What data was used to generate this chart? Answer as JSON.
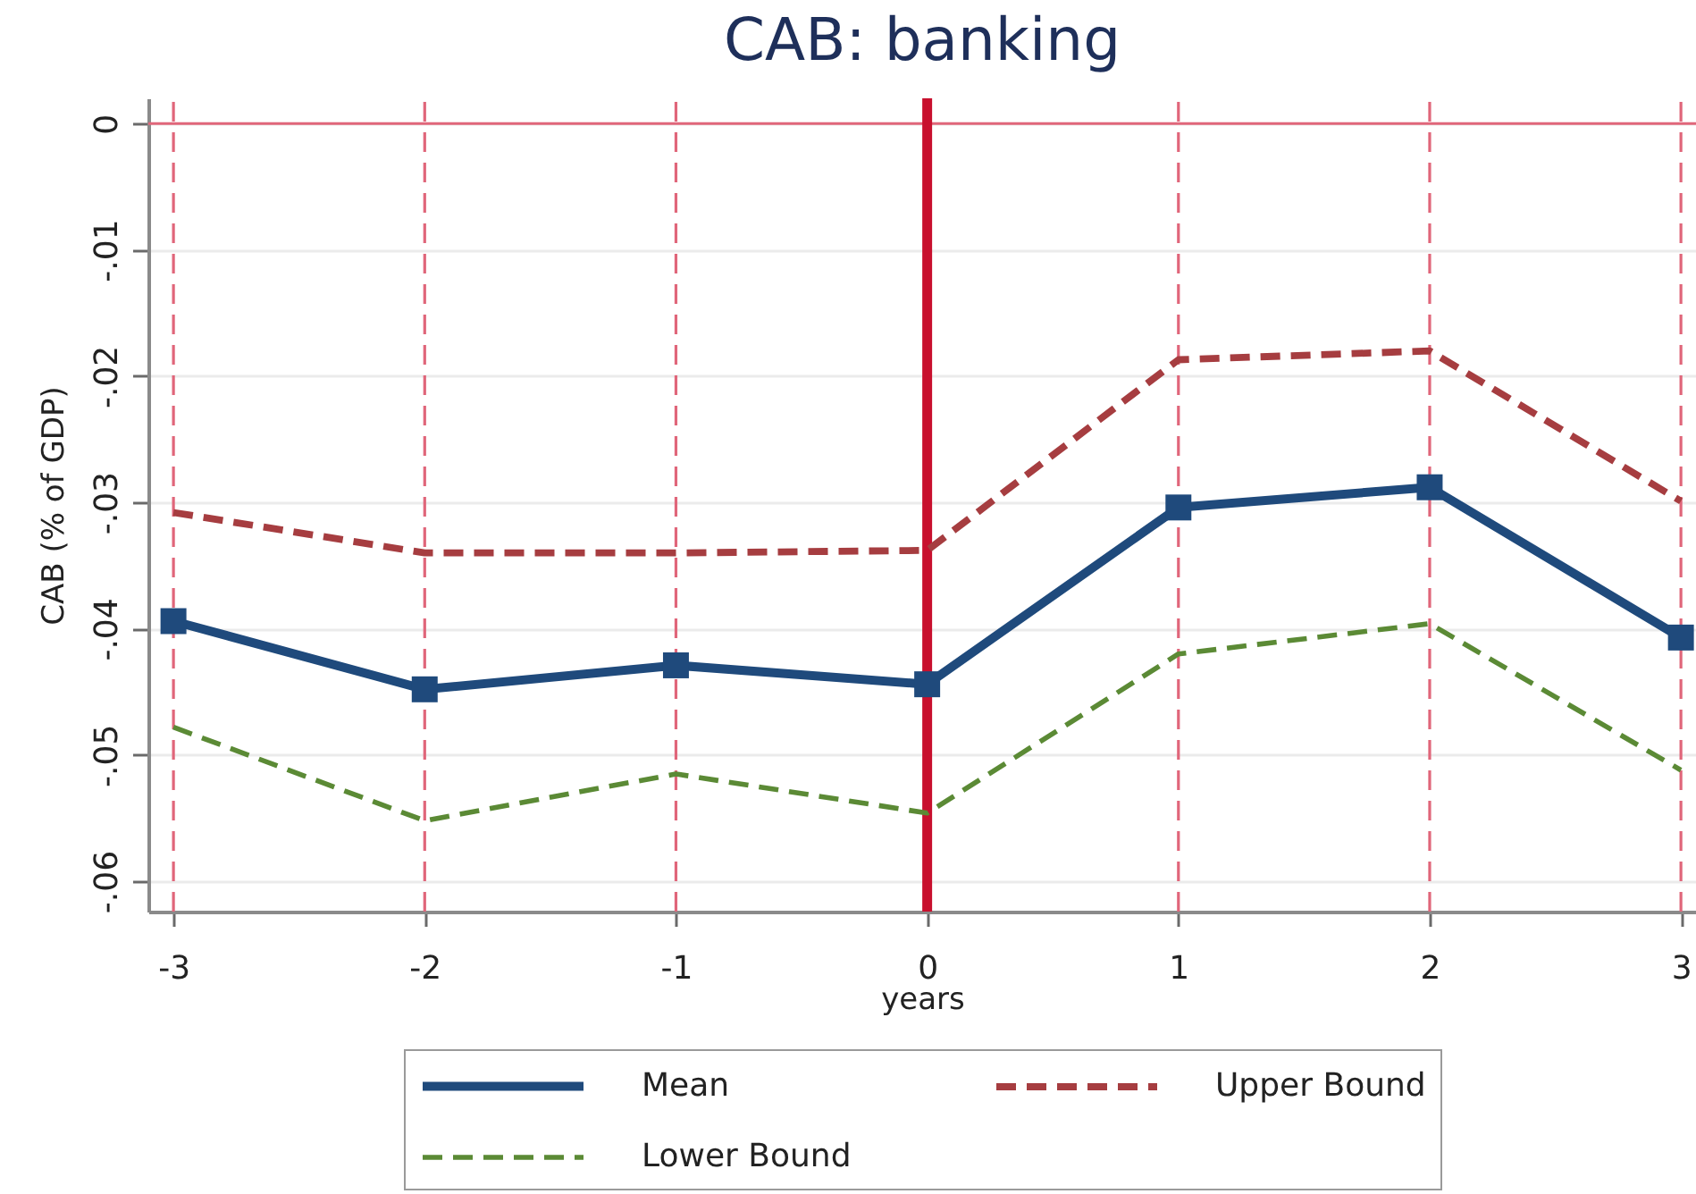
{
  "chart_data": {
    "type": "line",
    "title": "CAB: banking",
    "xlabel": "years",
    "ylabel": "CAB (% of GDP)",
    "x": [
      -3,
      -2,
      -1,
      0,
      1,
      2,
      3
    ],
    "series": [
      {
        "name": "Mean",
        "color": "#1f4a7c",
        "values": [
          -0.0394,
          -0.0448,
          -0.0429,
          -0.0444,
          -0.0304,
          -0.0288,
          -0.0407
        ],
        "marker": "square",
        "line_style": "solid"
      },
      {
        "name": "Upper Bound",
        "color": "#a63d40",
        "values": [
          -0.0308,
          -0.034,
          -0.034,
          -0.0338,
          -0.0187,
          -0.018,
          -0.0299
        ],
        "marker": "none",
        "line_style": "dashed"
      },
      {
        "name": "Lower Bound",
        "color": "#5b8a35",
        "values": [
          -0.0478,
          -0.0552,
          -0.0515,
          -0.0546,
          -0.042,
          -0.0396,
          -0.0512
        ],
        "marker": "none",
        "line_style": "dashed"
      }
    ],
    "xlim": [
      -3.1,
      3.06
    ],
    "xticks": [
      -3,
      -2,
      -1,
      0,
      1,
      2,
      3
    ],
    "ylim": [
      -0.0624,
      0.002
    ],
    "yticks": [
      {
        "value": -0.06,
        "label": "-.06"
      },
      {
        "value": -0.05,
        "label": "-.05"
      },
      {
        "value": -0.04,
        "label": "-.04"
      },
      {
        "value": -0.03,
        "label": "-.03"
      },
      {
        "value": -0.02,
        "label": "-.02"
      },
      {
        "value": -0.01,
        "label": "-.01"
      },
      0
    ],
    "grid": "y",
    "legend": "bottom",
    "ref_lines": [
      {
        "axis": "x",
        "value": -3,
        "label": null,
        "color": "#e0667a",
        "line_style": "dashed"
      },
      {
        "axis": "x",
        "value": -2,
        "label": null,
        "color": "#e0667a",
        "line_style": "dashed"
      },
      {
        "axis": "x",
        "value": -1,
        "label": null,
        "color": "#e0667a",
        "line_style": "dashed"
      },
      {
        "axis": "x",
        "value": 1,
        "label": null,
        "color": "#e0667a",
        "line_style": "dashed"
      },
      {
        "axis": "x",
        "value": 2,
        "label": null,
        "color": "#e0667a",
        "line_style": "dashed"
      },
      {
        "axis": "x",
        "value": 3,
        "label": null,
        "color": "#e0667a",
        "line_style": "dashed"
      },
      {
        "axis": "y",
        "value": 0,
        "label": null,
        "color": "#e0667a",
        "line_style": "solid"
      },
      {
        "axis": "x",
        "value": 0,
        "label": null,
        "color": "#c8102e",
        "line_style": "solid"
      }
    ]
  }
}
